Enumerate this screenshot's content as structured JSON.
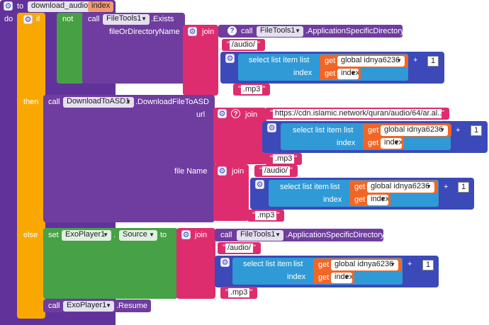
{
  "colors": {
    "procedure": "#62329b",
    "control": "#f8a800",
    "logic": "#47a043",
    "component_call": "#6f3d9f",
    "text": "#de2d6e",
    "list": "#2f9ad6",
    "math": "#3b49b9",
    "variable": "#f16625",
    "setter": "#46a147"
  },
  "procedure": {
    "keyword": "to",
    "name": "download_audio",
    "param": "index",
    "do_label": "do"
  },
  "if_block": {
    "if_label": "if",
    "not_label": "not",
    "then_label": "then",
    "else_label": "else"
  },
  "exists_call": {
    "call_label": "call",
    "component": "FileTools1",
    "method": ".Exists",
    "arg_label": "fileOrDirectoryName",
    "join_label": "join",
    "dir_call": {
      "call_label": "call",
      "component": "FileTools1",
      "method": ".ApplicationSpecificDirectory"
    },
    "audio_path": "/audio/",
    "select_label": "select list item",
    "list_label": "list",
    "index_label": "index",
    "get_label": "get",
    "global_var": "global idnya6236",
    "index_var": "index",
    "plus": "+",
    "one": "1",
    "ext": ".mp3"
  },
  "download_call": {
    "call_label": "call",
    "component": "DownloadToASD1",
    "method": ".DownloadFileToASD",
    "url_label": "url",
    "join_label": "join",
    "url_text": "https://cdn.islamic.network/quran/audio/64/ar.al...",
    "select_label": "select list item",
    "list_label": "list",
    "index_label": "index",
    "get_label": "get",
    "global_var": "global idnya6236",
    "index_var": "index",
    "plus": "+",
    "one": "1",
    "ext": ".mp3",
    "filename_label": "file Name",
    "filename_join": "join",
    "filename_path": "/audio/",
    "fn_select_label": "select list item",
    "fn_list_label": "list",
    "fn_index_label": "index",
    "fn_get_label": "get",
    "fn_global_var": "global idnya6236",
    "fn_index_var": "index",
    "fn_plus": "+",
    "fn_one": "1",
    "fn_ext": ".mp3"
  },
  "else_set": {
    "set_label": "set",
    "component": "ExoPlayer1",
    "property": "Source",
    "to_label": "to",
    "join_label": "join",
    "dir_call": {
      "call_label": "call",
      "component": "FileTools1",
      "method": ".ApplicationSpecificDirectory"
    },
    "audio_path": "/audio/",
    "select_label": "select list item",
    "list_label": "list",
    "index_label": "index",
    "get_label": "get",
    "global_var": "global idnya6236",
    "index_var": "index",
    "plus": "+",
    "one": "1",
    "ext": ".mp3"
  },
  "resume_call": {
    "call_label": "call",
    "component": "ExoPlayer1",
    "method": ".Resume"
  }
}
